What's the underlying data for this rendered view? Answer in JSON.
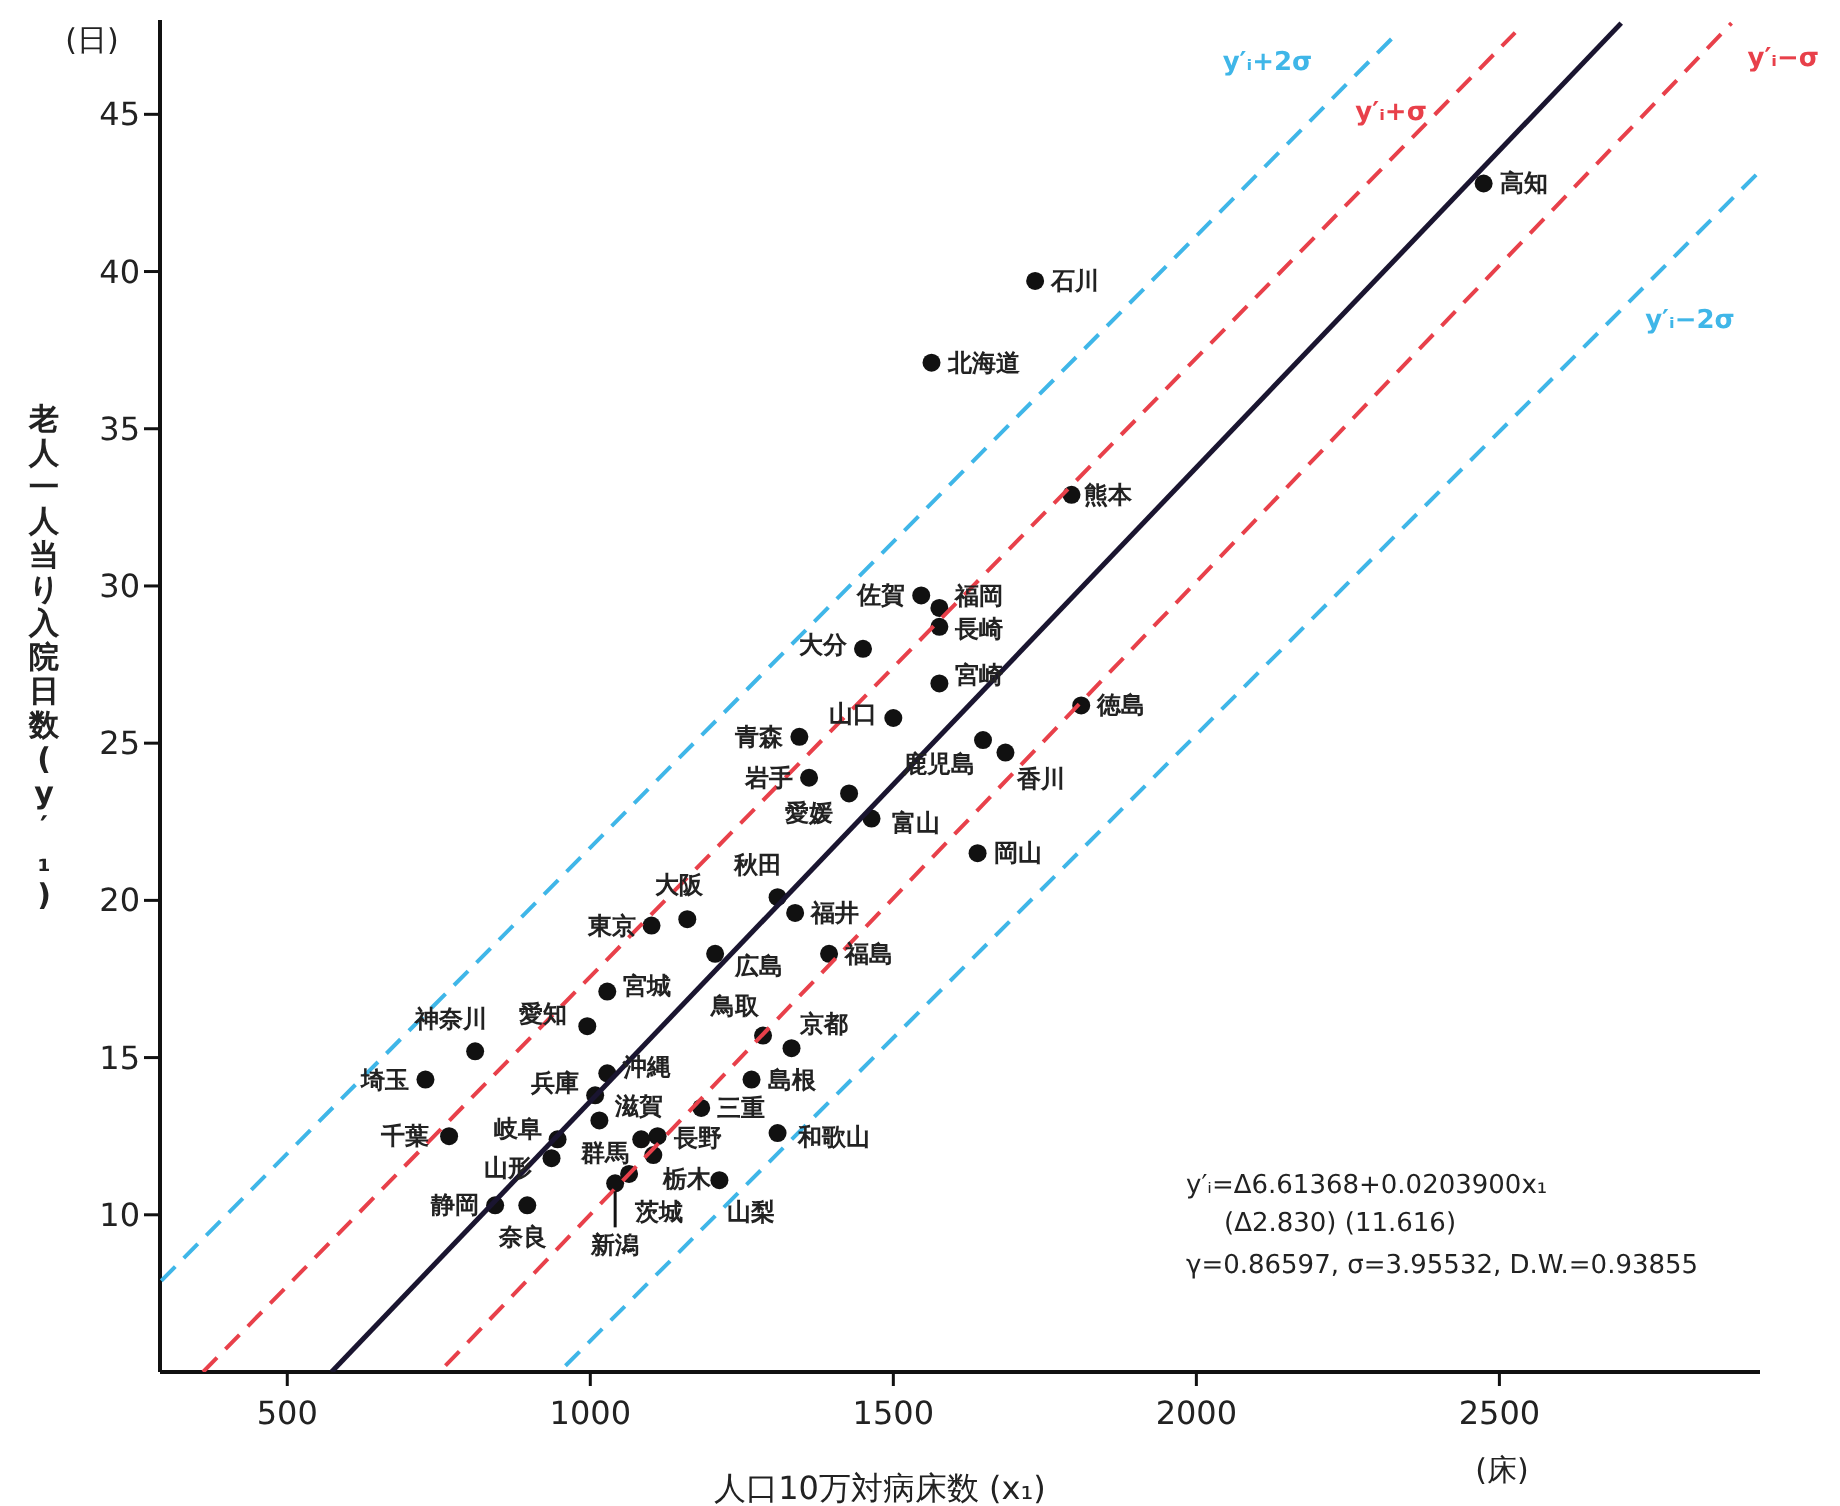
{
  "chart_data": {
    "type": "scatter",
    "xlabel": "人口10万対病床数 (x₁)",
    "ylabel": "老人一人当り入院日数 (y′₁)",
    "xlim": [
      290,
      2930
    ],
    "xticks": [
      500,
      1000,
      1500,
      2000,
      2500
    ],
    "ylim": [
      5,
      48
    ],
    "yticks": [
      10,
      15,
      20,
      25,
      30,
      35,
      40,
      45
    ],
    "grid": false,
    "series": [
      {
        "color": "#111111",
        "marker": "circle",
        "x": [
          2474,
          1734,
          1563,
          1794,
          1546,
          1576,
          1576,
          1450,
          1576,
          1500,
          1810,
          1345,
          1648,
          1685,
          1361,
          1427,
          1464,
          1639,
          1309,
          1338,
          1160,
          1101,
          1206,
          1394,
          1028,
          810,
          995,
          1285,
          1332,
          1028,
          728,
          1266,
          1008,
          1183,
          1015,
          767,
          1309,
          946,
          1111,
          1084,
          936,
          1104,
          1064,
          1041,
          1213,
          843,
          896
        ],
        "values": [
          42.8,
          39.7,
          37.1,
          32.9,
          29.7,
          29.3,
          28.7,
          28.0,
          26.9,
          25.8,
          26.2,
          25.2,
          25.1,
          24.7,
          23.9,
          23.4,
          22.6,
          21.5,
          20.1,
          19.6,
          19.4,
          19.2,
          18.3,
          18.3,
          17.1,
          15.2,
          16.0,
          15.7,
          15.3,
          14.5,
          14.3,
          14.3,
          13.8,
          13.4,
          13.0,
          12.5,
          12.6,
          12.4,
          12.5,
          12.4,
          11.8,
          11.9,
          11.3,
          11.0,
          11.1,
          10.3,
          10.3
        ]
      },
      {
        "type": "line",
        "color": "#1a1530",
        "line_style": "solid",
        "x": [
          573,
          2701
        ],
        "values": [
          5,
          47.9
        ]
      },
      {
        "type": "line",
        "name": "y′ᵢ+2σ",
        "color": "#3fb6e8",
        "line_style": "dashed",
        "x": [
          292,
          2322
        ],
        "values": [
          7.9,
          47.4
        ]
      },
      {
        "type": "line",
        "name": "y′ᵢ+σ",
        "color": "#e8404a",
        "line_style": "dashed",
        "x": [
          361,
          2526
        ],
        "values": [
          5,
          47.6
        ]
      },
      {
        "type": "line",
        "name": "y′ᵢ−σ",
        "color": "#e8404a",
        "line_style": "dashed",
        "x": [
          761,
          2883
        ],
        "values": [
          5.2,
          47.9
        ]
      },
      {
        "type": "line",
        "name": "y′ᵢ−2σ",
        "color": "#3fb6e8",
        "line_style": "dashed",
        "x": [
          959,
          2930
        ],
        "values": [
          5.2,
          43.2
        ]
      }
    ],
    "annotations": [
      {
        "text": "高知",
        "x": 2474,
        "y": 42.8
      },
      {
        "text": "石川",
        "x": 1734,
        "y": 39.7
      },
      {
        "text": "北海道",
        "x": 1563,
        "y": 37.1
      },
      {
        "text": "熊本",
        "x": 1794,
        "y": 32.9
      },
      {
        "text": "佐賀",
        "x": 1546,
        "y": 29.7
      },
      {
        "text": "福岡",
        "x": 1576,
        "y": 29.3
      },
      {
        "text": "長崎",
        "x": 1576,
        "y": 28.7
      },
      {
        "text": "大分",
        "x": 1450,
        "y": 28.0
      },
      {
        "text": "宮崎",
        "x": 1576,
        "y": 26.9
      },
      {
        "text": "山口",
        "x": 1500,
        "y": 25.8
      },
      {
        "text": "徳島",
        "x": 1810,
        "y": 26.2
      },
      {
        "text": "青森",
        "x": 1345,
        "y": 25.2
      },
      {
        "text": "鹿児島",
        "x": 1648,
        "y": 25.1
      },
      {
        "text": "香川",
        "x": 1685,
        "y": 24.7
      },
      {
        "text": "岩手",
        "x": 1361,
        "y": 23.9
      },
      {
        "text": "愛媛",
        "x": 1427,
        "y": 23.4
      },
      {
        "text": "富山",
        "x": 1464,
        "y": 22.6
      },
      {
        "text": "岡山",
        "x": 1639,
        "y": 21.5
      },
      {
        "text": "秋田",
        "x": 1309,
        "y": 20.1
      },
      {
        "text": "福井",
        "x": 1338,
        "y": 19.6
      },
      {
        "text": "大阪",
        "x": 1160,
        "y": 19.4
      },
      {
        "text": "東京",
        "x": 1101,
        "y": 19.2
      },
      {
        "text": "広島",
        "x": 1206,
        "y": 18.3
      },
      {
        "text": "福島",
        "x": 1394,
        "y": 18.3
      },
      {
        "text": "宮城",
        "x": 1028,
        "y": 17.1
      },
      {
        "text": "神奈川",
        "x": 810,
        "y": 15.2
      },
      {
        "text": "愛知",
        "x": 995,
        "y": 16.0
      },
      {
        "text": "鳥取",
        "x": 1285,
        "y": 15.7
      },
      {
        "text": "京都",
        "x": 1332,
        "y": 15.3
      },
      {
        "text": "沖縄",
        "x": 1028,
        "y": 14.5
      },
      {
        "text": "埼玉",
        "x": 728,
        "y": 14.3
      },
      {
        "text": "島根",
        "x": 1266,
        "y": 14.3
      },
      {
        "text": "兵庫",
        "x": 1008,
        "y": 13.8
      },
      {
        "text": "三重",
        "x": 1183,
        "y": 13.4
      },
      {
        "text": "滋賀",
        "x": 1015,
        "y": 13.0
      },
      {
        "text": "千葉",
        "x": 767,
        "y": 12.5
      },
      {
        "text": "和歌山",
        "x": 1309,
        "y": 12.6
      },
      {
        "text": "岐阜",
        "x": 946,
        "y": 12.4
      },
      {
        "text": "長野",
        "x": 1111,
        "y": 12.5
      },
      {
        "text": "群馬",
        "x": 1084,
        "y": 12.4
      },
      {
        "text": "山形",
        "x": 936,
        "y": 11.8
      },
      {
        "text": "栃木",
        "x": 1104,
        "y": 11.9
      },
      {
        "text": "茨城",
        "x": 1064,
        "y": 11.3
      },
      {
        "text": "新潟",
        "x": 1041,
        "y": 11.0
      },
      {
        "text": "山梨",
        "x": 1213,
        "y": 11.1
      },
      {
        "text": "静岡",
        "x": 843,
        "y": 10.3
      },
      {
        "text": "奈良",
        "x": 896,
        "y": 10.3
      },
      "(日)",
      "(床)",
      "y′ᵢ=Δ6.61368+0.0203900x₁",
      "(Δ2.830)        (11.616)",
      "γ=0.86597,  σ=3.95532,  D.W.=0.93855"
    ]
  }
}
